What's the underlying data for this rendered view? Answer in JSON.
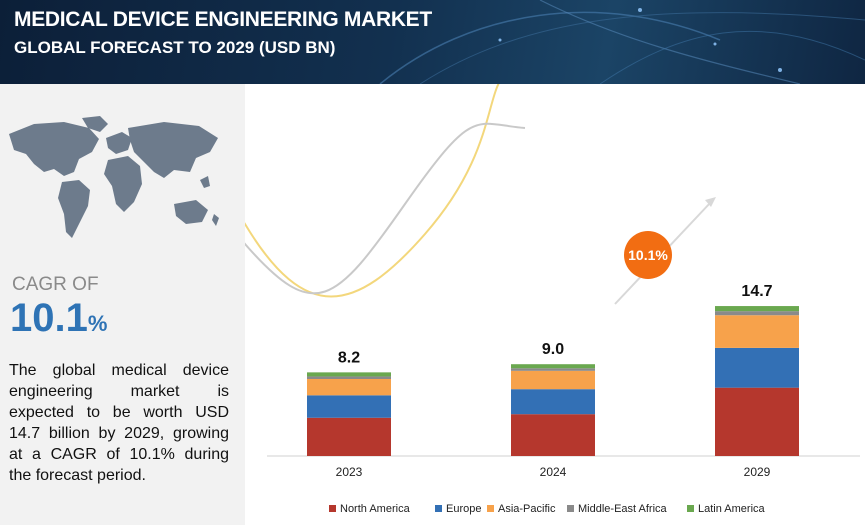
{
  "header": {
    "title": "MEDICAL DEVICE ENGINEERING MARKET",
    "subtitle": "GLOBAL FORECAST TO 2029 (USD BN)"
  },
  "sidebar": {
    "cagr_label": "CAGR OF",
    "cagr_value": "10.1",
    "cagr_unit": "%",
    "description": "The global medical device engineering market is expected to be worth USD 14.7 billion by 2029, growing at a CAGR of 10.1% during the forecast period."
  },
  "chart_data": {
    "type": "bar",
    "stacked": true,
    "categories": [
      "2023",
      "2024",
      "2029"
    ],
    "totals": [
      "8.2",
      "9.0",
      "14.7"
    ],
    "series": [
      {
        "name": "North America",
        "color": "#b5372d",
        "values": [
          3.75,
          4.1,
          6.7
        ]
      },
      {
        "name": "Europe",
        "color": "#3370b5",
        "values": [
          2.2,
          2.45,
          3.9
        ]
      },
      {
        "name": "Asia-Pacific",
        "color": "#f7a24b",
        "values": [
          1.6,
          1.8,
          3.2
        ]
      },
      {
        "name": "Middle-East Africa",
        "color": "#8a8a8a",
        "values": [
          0.25,
          0.25,
          0.4
        ]
      },
      {
        "name": "Latin America",
        "color": "#6aa84f",
        "values": [
          0.4,
          0.4,
          0.5
        ]
      }
    ],
    "cagr_badge": "10.1%",
    "badge_color": "#f26d12",
    "legend_position": "bottom",
    "grid": false
  }
}
